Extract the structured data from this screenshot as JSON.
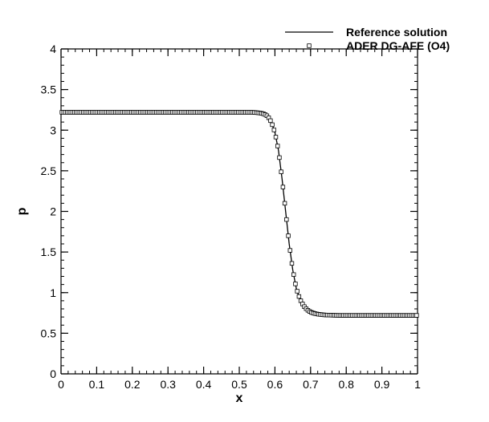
{
  "chart_data": {
    "type": "line",
    "xlabel": "x",
    "ylabel": "p",
    "xlim": [
      0,
      1
    ],
    "ylim": [
      0,
      4
    ],
    "x_ticks": [
      0,
      0.1,
      0.2,
      0.3,
      0.4,
      0.5,
      0.6,
      0.7,
      0.8,
      0.9,
      1
    ],
    "x_tick_labels": [
      "0",
      "0.1",
      "0.2",
      "0.3",
      "0.4",
      "0.5",
      "0.6",
      "0.7",
      "0.8",
      "0.9",
      "1"
    ],
    "y_ticks": [
      0,
      0.5,
      1,
      1.5,
      2,
      2.5,
      3,
      3.5,
      4
    ],
    "y_tick_labels": [
      "0",
      "0.5",
      "1",
      "1.5",
      "2",
      "2.5",
      "3",
      "3.5",
      "4"
    ],
    "grid": false,
    "legend_position": "top-right",
    "series": [
      {
        "name": "Reference solution",
        "style": "line",
        "color": "#000000",
        "x": [
          0,
          0.05,
          0.1,
          0.15,
          0.2,
          0.25,
          0.3,
          0.35,
          0.4,
          0.45,
          0.5,
          0.54,
          0.56,
          0.57,
          0.58,
          0.59,
          0.6,
          0.61,
          0.62,
          0.63,
          0.64,
          0.65,
          0.66,
          0.67,
          0.68,
          0.69,
          0.7,
          0.71,
          0.72,
          0.74,
          0.76,
          0.78,
          0.8,
          0.85,
          0.9,
          0.95,
          1
        ],
        "y": [
          3.22,
          3.22,
          3.22,
          3.22,
          3.22,
          3.22,
          3.22,
          3.22,
          3.22,
          3.22,
          3.22,
          3.22,
          3.21,
          3.2,
          3.17,
          3.1,
          2.97,
          2.75,
          2.4,
          2.0,
          1.6,
          1.28,
          1.05,
          0.92,
          0.84,
          0.79,
          0.76,
          0.745,
          0.735,
          0.725,
          0.722,
          0.72,
          0.72,
          0.72,
          0.72,
          0.72,
          0.72
        ]
      },
      {
        "name": "ADER DG-AFE (O4)",
        "style": "marker",
        "marker": "square",
        "color": "#000000",
        "x": [
          0,
          0.05,
          0.1,
          0.15,
          0.2,
          0.25,
          0.3,
          0.35,
          0.4,
          0.45,
          0.5,
          0.54,
          0.56,
          0.57,
          0.58,
          0.59,
          0.6,
          0.61,
          0.62,
          0.63,
          0.64,
          0.65,
          0.66,
          0.67,
          0.68,
          0.69,
          0.7,
          0.71,
          0.72,
          0.74,
          0.76,
          0.78,
          0.8,
          0.85,
          0.9,
          0.95,
          1
        ],
        "y": [
          3.22,
          3.22,
          3.22,
          3.22,
          3.22,
          3.22,
          3.22,
          3.22,
          3.22,
          3.22,
          3.22,
          3.22,
          3.21,
          3.2,
          3.17,
          3.1,
          2.97,
          2.75,
          2.4,
          2.0,
          1.6,
          1.28,
          1.05,
          0.92,
          0.84,
          0.79,
          0.76,
          0.745,
          0.735,
          0.725,
          0.722,
          0.72,
          0.72,
          0.72,
          0.72,
          0.72,
          0.72
        ]
      }
    ]
  }
}
